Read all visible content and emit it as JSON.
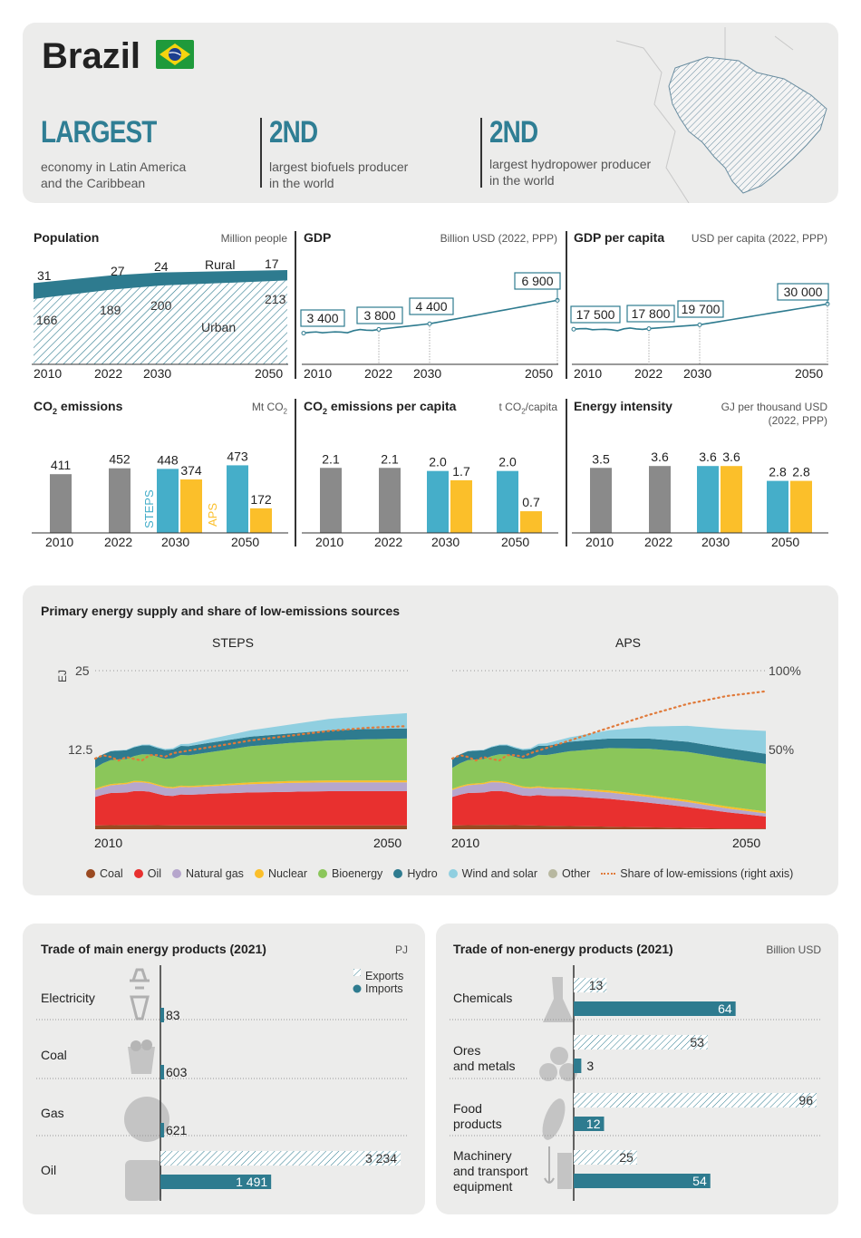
{
  "header": {
    "country": "Brazil",
    "stats": [
      {
        "head": "LARGEST",
        "desc1": "economy in Latin America",
        "desc2": "and the Caribbean"
      },
      {
        "head": "2ND",
        "desc1": "largest biofuels producer",
        "desc2": "in the world"
      },
      {
        "head": "2ND",
        "desc1": "largest hydropower producer",
        "desc2": "in the world"
      }
    ]
  },
  "colors": {
    "teal": "#2e7b8f",
    "blue": "#45aec9",
    "yellow": "#fbbf2a",
    "grey": "#8a8a8a"
  },
  "population": {
    "title": "Population",
    "unit": "Million people",
    "rural_label": "Rural",
    "urban_label": "Urban",
    "years": [
      "2010",
      "2022",
      "2030",
      "2050"
    ],
    "rural": [
      31,
      27,
      24,
      17
    ],
    "urban": [
      166,
      189,
      200,
      213
    ]
  },
  "gdp": {
    "title": "GDP",
    "unit": "Billion USD (2022, PPP)",
    "years": [
      "2010",
      "2022",
      "2030",
      "2050"
    ],
    "labels": [
      "3 400",
      "3 800",
      "4 400",
      "6 900"
    ],
    "values": [
      3400,
      3800,
      4400,
      6900
    ]
  },
  "gdp_pc": {
    "title": "GDP per capita",
    "unit": "USD per capita (2022, PPP)",
    "years": [
      "2010",
      "2022",
      "2030",
      "2050"
    ],
    "labels": [
      "17 500",
      "17 800",
      "19 700",
      "30 000"
    ],
    "values": [
      17500,
      17800,
      19700,
      30000
    ]
  },
  "co2": {
    "title": "CO₂ emissions",
    "unit": "Mt CO₂",
    "years": [
      "2010",
      "2022",
      "2030",
      "2050"
    ],
    "steps_label": "STEPS",
    "aps_label": "APS",
    "hist": [
      411,
      452
    ],
    "steps": [
      448,
      473
    ],
    "aps": [
      374,
      172
    ]
  },
  "co2pc": {
    "title": "CO₂ emissions per capita",
    "unit": "t CO₂/capita",
    "years": [
      "2010",
      "2022",
      "2030",
      "2050"
    ],
    "hist": [
      "2.1",
      "2.1"
    ],
    "steps": [
      "2.0",
      "2.0"
    ],
    "aps": [
      "1.7",
      "0.7"
    ]
  },
  "intensity": {
    "title": "Energy intensity",
    "unit1": "GJ per thousand USD",
    "unit2": "(2022, PPP)",
    "years": [
      "2010",
      "2022",
      "2030",
      "2050"
    ],
    "hist": [
      "3.5",
      "3.6"
    ],
    "steps": [
      "3.6",
      "2.8"
    ],
    "aps": [
      "3.6",
      "2.8"
    ]
  },
  "pes": {
    "title": "Primary energy supply and share of low-emissions sources",
    "steps_title": "STEPS",
    "aps_title": "APS",
    "unit": "EJ",
    "left_ticks": [
      "25",
      "12.5"
    ],
    "right_ticks": [
      "100%",
      "50%"
    ],
    "x_ticks": [
      "2010",
      "2050"
    ],
    "legend": [
      "Coal",
      "Oil",
      "Natural gas",
      "Nuclear",
      "Bioenergy",
      "Hydro",
      "Wind and solar",
      "Other",
      "Share of low-emissions (right axis)"
    ],
    "legend_colors": [
      "#9a4a22",
      "#e8302f",
      "#b6a6cc",
      "#fbbf2a",
      "#8bc65a",
      "#2e7b8f",
      "#90cfe0",
      "#b8b8a0",
      "#e07a3a"
    ],
    "chart_data": {
      "type": "area",
      "series_order": [
        "Coal",
        "Oil",
        "Natural gas",
        "Nuclear",
        "Bioenergy",
        "Hydro",
        "Wind and solar"
      ],
      "steps": {
        "years": [
          2010,
          2015,
          2020,
          2025,
          2030,
          2035,
          2040,
          2045,
          2050
        ],
        "Coal": [
          0.6,
          0.7,
          0.6,
          0.6,
          0.6,
          0.6,
          0.6,
          0.6,
          0.6
        ],
        "Oil": [
          4.6,
          5.4,
          4.7,
          5.0,
          5.2,
          5.3,
          5.4,
          5.4,
          5.4
        ],
        "Natural gas": [
          1.1,
          1.4,
          1.2,
          1.2,
          1.3,
          1.4,
          1.4,
          1.4,
          1.4
        ],
        "Nuclear": [
          0.2,
          0.2,
          0.2,
          0.2,
          0.3,
          0.3,
          0.3,
          0.3,
          0.3
        ],
        "Bioenergy": [
          3.4,
          4.0,
          4.6,
          5.2,
          5.7,
          6.0,
          6.3,
          6.5,
          6.6
        ],
        "Hydro": [
          1.4,
          1.4,
          1.4,
          1.5,
          1.5,
          1.5,
          1.6,
          1.6,
          1.6
        ],
        "Wind and solar": [
          0.0,
          0.1,
          0.2,
          0.6,
          1.0,
          1.4,
          1.8,
          2.1,
          2.4
        ],
        "share": [
          46,
          44,
          48,
          52,
          56,
          59,
          62,
          64,
          65
        ]
      },
      "aps": {
        "years": [
          2010,
          2015,
          2020,
          2025,
          2030,
          2035,
          2040,
          2045,
          2050
        ],
        "Coal": [
          0.6,
          0.7,
          0.6,
          0.5,
          0.4,
          0.3,
          0.2,
          0.1,
          0.1
        ],
        "Oil": [
          4.6,
          5.4,
          4.7,
          4.7,
          4.4,
          3.9,
          3.3,
          2.6,
          1.9
        ],
        "Natural gas": [
          1.1,
          1.4,
          1.2,
          1.1,
          1.0,
          0.9,
          0.8,
          0.6,
          0.5
        ],
        "Nuclear": [
          0.2,
          0.2,
          0.2,
          0.2,
          0.3,
          0.3,
          0.3,
          0.3,
          0.3
        ],
        "Bioenergy": [
          3.4,
          4.0,
          4.6,
          5.8,
          6.7,
          7.3,
          7.6,
          7.6,
          7.5
        ],
        "Hydro": [
          1.4,
          1.4,
          1.4,
          1.5,
          1.5,
          1.6,
          1.6,
          1.6,
          1.6
        ],
        "Wind and solar": [
          0.0,
          0.1,
          0.2,
          0.7,
          1.3,
          1.9,
          2.5,
          3.0,
          3.6
        ],
        "share": [
          46,
          44,
          48,
          56,
          64,
          72,
          79,
          84,
          87
        ]
      },
      "ylim": [
        0,
        25
      ],
      "y2lim": [
        0,
        100
      ]
    }
  },
  "trade_energy": {
    "title": "Trade of main energy products (2021)",
    "unit": "PJ",
    "exports_label": "Exports",
    "imports_label": "Imports",
    "rows": [
      {
        "label1": "Electricity",
        "label2": "",
        "exports": 0,
        "imports": 83,
        "imports_label": "83",
        "exports_label": ""
      },
      {
        "label1": "Coal",
        "label2": "",
        "exports": 0,
        "imports": 603,
        "imports_label": "603",
        "exports_label": ""
      },
      {
        "label1": "Gas",
        "label2": "",
        "exports": 0,
        "imports": 621,
        "imports_label": "621",
        "exports_label": ""
      },
      {
        "label1": "Oil",
        "label2": "",
        "exports": 3234,
        "imports": 1491,
        "imports_label": "1 491",
        "exports_label": "3 234"
      }
    ]
  },
  "trade_non_energy": {
    "title": "Trade of non-energy products (2021)",
    "unit": "Billion USD",
    "rows": [
      {
        "label1": "Chemicals",
        "label2": "",
        "label3": "",
        "exports": 13,
        "imports": 64
      },
      {
        "label1": "Ores",
        "label2": "and metals",
        "label3": "",
        "exports": 53,
        "imports": 3
      },
      {
        "label1": "Food",
        "label2": "products",
        "label3": "",
        "exports": 96,
        "imports": 12
      },
      {
        "label1": "Machinery",
        "label2": "and transport",
        "label3": "equipment",
        "exports": 25,
        "imports": 54
      }
    ]
  }
}
